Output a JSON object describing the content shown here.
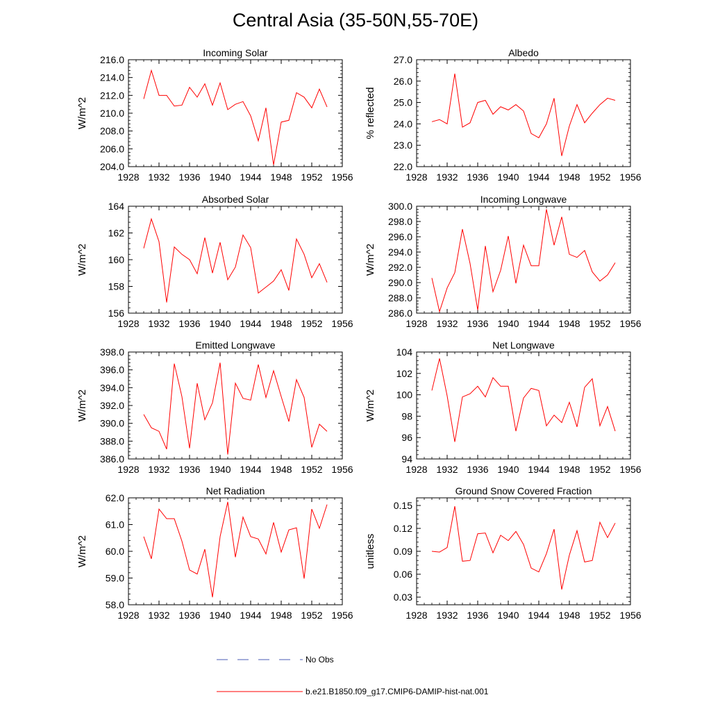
{
  "title": "Central Asia (35-50N,55-70E)",
  "chart_data": [
    {
      "type": "line",
      "title": "Incoming Solar",
      "ylabel": "W/m^2",
      "xlim": [
        1928,
        1956
      ],
      "ylim": [
        204,
        216
      ],
      "xticks": [
        1928,
        1932,
        1936,
        1940,
        1944,
        1948,
        1952,
        1956
      ],
      "xtick_labels": [
        "1928",
        "1932",
        "1936",
        "1940",
        "1944",
        "1948",
        "1952",
        "1956"
      ],
      "yticks": [
        204,
        206,
        208,
        210,
        212,
        214,
        216
      ],
      "ytick_labels": [
        "204.0",
        "206.0",
        "208.0",
        "210.0",
        "212.0",
        "214.0",
        "216.0"
      ],
      "x": [
        1930,
        1931,
        1932,
        1933,
        1934,
        1935,
        1936,
        1937,
        1938,
        1939,
        1940,
        1941,
        1942,
        1943,
        1944,
        1945,
        1946,
        1947,
        1948,
        1949,
        1950,
        1951,
        1952,
        1953,
        1954
      ],
      "series": [
        {
          "name": "b.e21.B1850.f09_g17.CMIP6-DAMIP-hist-nat.001",
          "color": "#ff0000",
          "values": [
            211.6,
            214.8,
            212.0,
            212.0,
            210.8,
            210.9,
            212.9,
            211.8,
            213.3,
            210.9,
            213.4,
            210.4,
            211.0,
            211.3,
            209.7,
            206.9,
            210.6,
            204.2,
            209.0,
            209.2,
            212.3,
            211.8,
            210.6,
            212.7,
            210.7
          ]
        }
      ]
    },
    {
      "type": "line",
      "title": "Albedo",
      "ylabel": "% reflected",
      "xlim": [
        1928,
        1956
      ],
      "ylim": [
        22,
        27
      ],
      "xticks": [
        1928,
        1932,
        1936,
        1940,
        1944,
        1948,
        1952,
        1956
      ],
      "xtick_labels": [
        "1928",
        "1932",
        "1936",
        "1940",
        "1944",
        "1948",
        "1952",
        "1956"
      ],
      "yticks": [
        22,
        23,
        24,
        25,
        26,
        27
      ],
      "ytick_labels": [
        "22.0",
        "23.0",
        "24.0",
        "25.0",
        "26.0",
        "27.0"
      ],
      "x": [
        1930,
        1931,
        1932,
        1933,
        1934,
        1935,
        1936,
        1937,
        1938,
        1939,
        1940,
        1941,
        1942,
        1943,
        1944,
        1945,
        1946,
        1947,
        1948,
        1949,
        1950,
        1951,
        1952,
        1953,
        1954
      ],
      "series": [
        {
          "name": "b.e21.B1850.f09_g17.CMIP6-DAMIP-hist-nat.001",
          "color": "#ff0000",
          "values": [
            24.1,
            24.2,
            24.0,
            26.35,
            23.85,
            24.05,
            25.0,
            25.1,
            24.45,
            24.8,
            24.65,
            24.9,
            24.6,
            23.55,
            23.35,
            24.0,
            25.2,
            22.5,
            23.9,
            24.9,
            24.05,
            24.5,
            24.9,
            25.2,
            25.1
          ]
        }
      ]
    },
    {
      "type": "line",
      "title": "Absorbed Solar",
      "ylabel": "W/m^2",
      "xlim": [
        1928,
        1956
      ],
      "ylim": [
        156,
        164
      ],
      "xticks": [
        1928,
        1932,
        1936,
        1940,
        1944,
        1948,
        1952,
        1956
      ],
      "xtick_labels": [
        "1928",
        "1932",
        "1936",
        "1940",
        "1944",
        "1948",
        "1952",
        "1956"
      ],
      "yticks": [
        156,
        158,
        160,
        162,
        164
      ],
      "ytick_labels": [
        "156",
        "158",
        "160",
        "162",
        "164"
      ],
      "x": [
        1930,
        1931,
        1932,
        1933,
        1934,
        1935,
        1936,
        1937,
        1938,
        1939,
        1940,
        1941,
        1942,
        1943,
        1944,
        1945,
        1946,
        1947,
        1948,
        1949,
        1950,
        1951,
        1952,
        1953,
        1954
      ],
      "series": [
        {
          "name": "b.e21.B1850.f09_g17.CMIP6-DAMIP-hist-nat.001",
          "color": "#ff0000",
          "values": [
            160.85,
            163.05,
            161.35,
            156.8,
            160.95,
            160.4,
            160.0,
            158.95,
            161.65,
            159.0,
            161.3,
            158.5,
            159.45,
            161.85,
            160.9,
            157.5,
            157.95,
            158.4,
            159.25,
            157.7,
            161.55,
            160.4,
            158.65,
            159.7,
            158.3
          ]
        }
      ]
    },
    {
      "type": "line",
      "title": "Incoming Longwave",
      "ylabel": "W/m^2",
      "xlim": [
        1928,
        1956
      ],
      "ylim": [
        286,
        300
      ],
      "xticks": [
        1928,
        1932,
        1936,
        1940,
        1944,
        1948,
        1952,
        1956
      ],
      "xtick_labels": [
        "1928",
        "1932",
        "1936",
        "1940",
        "1944",
        "1948",
        "1952",
        "1956"
      ],
      "yticks": [
        286,
        288,
        290,
        292,
        294,
        296,
        298,
        300
      ],
      "ytick_labels": [
        "286.0",
        "288.0",
        "290.0",
        "292.0",
        "294.0",
        "296.0",
        "298.0",
        "300.0"
      ],
      "x": [
        1930,
        1931,
        1932,
        1933,
        1934,
        1935,
        1936,
        1937,
        1938,
        1939,
        1940,
        1941,
        1942,
        1943,
        1944,
        1945,
        1946,
        1947,
        1948,
        1949,
        1950,
        1951,
        1952,
        1953,
        1954
      ],
      "series": [
        {
          "name": "b.e21.B1850.f09_g17.CMIP6-DAMIP-hist-nat.001",
          "color": "#ff0000",
          "values": [
            290.6,
            286.2,
            289.3,
            291.3,
            297.0,
            292.5,
            286.4,
            294.8,
            288.8,
            291.6,
            296.1,
            289.9,
            294.9,
            292.2,
            292.2,
            299.6,
            294.9,
            298.6,
            293.7,
            293.3,
            294.2,
            291.4,
            290.2,
            291.0,
            292.6
          ]
        }
      ]
    },
    {
      "type": "line",
      "title": "Emitted Longwave",
      "ylabel": "W/m^2",
      "xlim": [
        1928,
        1956
      ],
      "ylim": [
        386,
        398
      ],
      "xticks": [
        1928,
        1932,
        1936,
        1940,
        1944,
        1948,
        1952,
        1956
      ],
      "xtick_labels": [
        "1928",
        "1932",
        "1936",
        "1940",
        "1944",
        "1948",
        "1952",
        "1956"
      ],
      "yticks": [
        386,
        388,
        390,
        392,
        394,
        396,
        398
      ],
      "ytick_labels": [
        "386.0",
        "388.0",
        "390.0",
        "392.0",
        "394.0",
        "396.0",
        "398.0"
      ],
      "x": [
        1930,
        1931,
        1932,
        1933,
        1934,
        1935,
        1936,
        1937,
        1938,
        1939,
        1940,
        1941,
        1942,
        1943,
        1944,
        1945,
        1946,
        1947,
        1948,
        1949,
        1950,
        1951,
        1952,
        1953,
        1954
      ],
      "series": [
        {
          "name": "b.e21.B1850.f09_g17.CMIP6-DAMIP-hist-nat.001",
          "color": "#ff0000",
          "values": [
            391.0,
            389.5,
            389.1,
            387.1,
            396.7,
            393.0,
            387.2,
            394.5,
            390.4,
            392.3,
            396.8,
            386.5,
            394.5,
            392.8,
            392.6,
            396.6,
            392.9,
            395.9,
            393.0,
            390.2,
            394.9,
            392.9,
            387.3,
            389.9,
            389.1
          ]
        }
      ]
    },
    {
      "type": "line",
      "title": "Net Longwave",
      "ylabel": "W/m^2",
      "xlim": [
        1928,
        1956
      ],
      "ylim": [
        94,
        104
      ],
      "xticks": [
        1928,
        1932,
        1936,
        1940,
        1944,
        1948,
        1952,
        1956
      ],
      "xtick_labels": [
        "1928",
        "1932",
        "1936",
        "1940",
        "1944",
        "1948",
        "1952",
        "1956"
      ],
      "yticks": [
        94,
        96,
        98,
        100,
        102,
        104
      ],
      "ytick_labels": [
        "94",
        "96",
        "98",
        "100",
        "102",
        "104"
      ],
      "x": [
        1930,
        1931,
        1932,
        1933,
        1934,
        1935,
        1936,
        1937,
        1938,
        1939,
        1940,
        1941,
        1942,
        1943,
        1944,
        1945,
        1946,
        1947,
        1948,
        1949,
        1950,
        1951,
        1952,
        1953,
        1954
      ],
      "series": [
        {
          "name": "b.e21.B1850.f09_g17.CMIP6-DAMIP-hist-nat.001",
          "color": "#ff0000",
          "values": [
            100.4,
            103.4,
            99.9,
            95.6,
            99.8,
            100.1,
            100.8,
            99.8,
            101.6,
            100.8,
            100.8,
            96.6,
            99.7,
            100.6,
            100.4,
            97.1,
            98.1,
            97.4,
            99.3,
            97.0,
            100.7,
            101.5,
            97.1,
            98.9,
            96.6
          ]
        }
      ]
    },
    {
      "type": "line",
      "title": "Net Radiation",
      "ylabel": "W/m^2",
      "xlim": [
        1928,
        1956
      ],
      "ylim": [
        58,
        62
      ],
      "xticks": [
        1928,
        1932,
        1936,
        1940,
        1944,
        1948,
        1952,
        1956
      ],
      "xtick_labels": [
        "1928",
        "1932",
        "1936",
        "1940",
        "1944",
        "1948",
        "1952",
        "1956"
      ],
      "yticks": [
        58,
        59,
        60,
        61,
        62
      ],
      "ytick_labels": [
        "58.0",
        "59.0",
        "60.0",
        "61.0",
        "62.0"
      ],
      "x": [
        1930,
        1931,
        1932,
        1933,
        1934,
        1935,
        1936,
        1937,
        1938,
        1939,
        1940,
        1941,
        1942,
        1943,
        1944,
        1945,
        1946,
        1947,
        1948,
        1949,
        1950,
        1951,
        1952,
        1953,
        1954
      ],
      "series": [
        {
          "name": "b.e21.B1850.f09_g17.CMIP6-DAMIP-hist-nat.001",
          "color": "#ff0000",
          "values": [
            60.55,
            59.72,
            61.58,
            61.22,
            61.22,
            60.38,
            59.3,
            59.15,
            60.08,
            58.28,
            60.55,
            61.85,
            59.78,
            61.28,
            60.55,
            60.46,
            59.9,
            61.08,
            59.97,
            60.8,
            60.88,
            58.98,
            61.58,
            60.86,
            61.75
          ]
        }
      ]
    },
    {
      "type": "line",
      "title": "Ground Snow Covered Fraction",
      "ylabel": "unitless",
      "xlim": [
        1928,
        1956
      ],
      "ylim": [
        0.02,
        0.16
      ],
      "xticks": [
        1928,
        1932,
        1936,
        1940,
        1944,
        1948,
        1952,
        1956
      ],
      "xtick_labels": [
        "1928",
        "1932",
        "1936",
        "1940",
        "1944",
        "1948",
        "1952",
        "1956"
      ],
      "yticks": [
        0.03,
        0.06,
        0.09,
        0.12,
        0.15
      ],
      "ytick_labels": [
        "0.03",
        "0.06",
        "0.09",
        "0.12",
        "0.15"
      ],
      "x": [
        1930,
        1931,
        1932,
        1933,
        1934,
        1935,
        1936,
        1937,
        1938,
        1939,
        1940,
        1941,
        1942,
        1943,
        1944,
        1945,
        1946,
        1947,
        1948,
        1949,
        1950,
        1951,
        1952,
        1953,
        1954
      ],
      "series": [
        {
          "name": "b.e21.B1850.f09_g17.CMIP6-DAMIP-hist-nat.001",
          "color": "#ff0000",
          "values": [
            0.09,
            0.089,
            0.095,
            0.149,
            0.077,
            0.078,
            0.113,
            0.114,
            0.088,
            0.111,
            0.104,
            0.116,
            0.099,
            0.068,
            0.063,
            0.087,
            0.119,
            0.04,
            0.085,
            0.117,
            0.076,
            0.078,
            0.128,
            0.108,
            0.127
          ]
        }
      ]
    }
  ],
  "legend": {
    "position": "bottom-center",
    "items": [
      {
        "label": "No Obs",
        "color": "#4a5bb5",
        "style": "dashed"
      },
      {
        "label": "b.e21.B1850.f09_g17.CMIP6-DAMIP-hist-nat.001",
        "color": "#ff0000",
        "style": "solid"
      }
    ]
  }
}
